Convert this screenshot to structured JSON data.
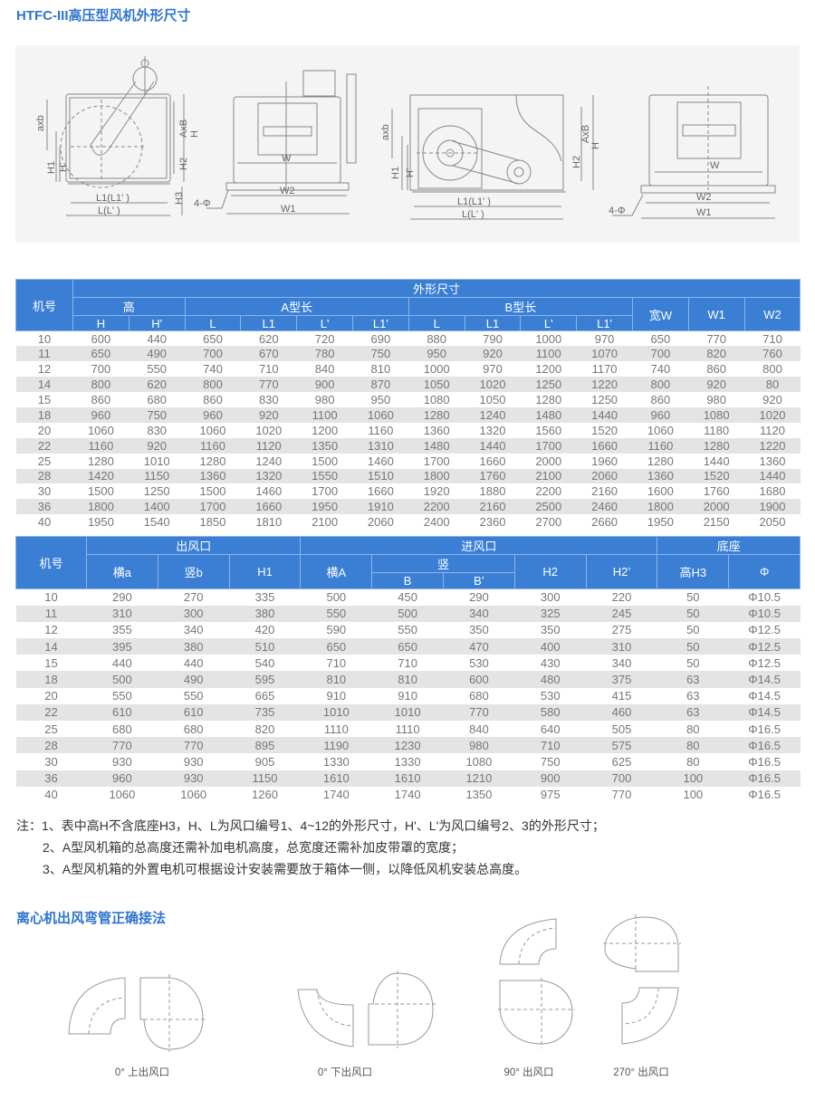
{
  "title": "HTFC-III高压型风机外形尺寸",
  "drawing_labels": {
    "axb": "axb",
    "AxB": "AxB",
    "H": "H",
    "H1": "H1",
    "H_prime": "H'",
    "H2": "H2",
    "H3": "H3",
    "L1": "L1(L1' )",
    "L": "L(L' )",
    "W": "W",
    "W1": "W1",
    "W2": "W2",
    "hole": "4-Φ"
  },
  "table1": {
    "group": "外形尺寸",
    "jihao": "机号",
    "gao": "高",
    "a_len": "A型长",
    "b_len": "B型长",
    "width_w": "宽W",
    "w1": "W1",
    "w2": "W2",
    "sub": [
      "H",
      "H'",
      "L",
      "L1",
      "L'",
      "L1'",
      "L",
      "L1",
      "L'",
      "L1'"
    ],
    "rows": [
      [
        "10",
        "600",
        "440",
        "650",
        "620",
        "720",
        "690",
        "880",
        "790",
        "1000",
        "970",
        "650",
        "770",
        "710"
      ],
      [
        "11",
        "650",
        "490",
        "700",
        "670",
        "780",
        "750",
        "950",
        "920",
        "1100",
        "1070",
        "700",
        "820",
        "760"
      ],
      [
        "12",
        "700",
        "550",
        "740",
        "710",
        "840",
        "810",
        "1000",
        "970",
        "1200",
        "1170",
        "740",
        "860",
        "800"
      ],
      [
        "14",
        "800",
        "620",
        "800",
        "770",
        "900",
        "870",
        "1050",
        "1020",
        "1250",
        "1220",
        "800",
        "920",
        "80"
      ],
      [
        "15",
        "860",
        "680",
        "860",
        "830",
        "980",
        "950",
        "1080",
        "1050",
        "1280",
        "1250",
        "860",
        "980",
        "920"
      ],
      [
        "18",
        "960",
        "750",
        "960",
        "920",
        "1100",
        "1060",
        "1280",
        "1240",
        "1480",
        "1440",
        "960",
        "1080",
        "1020"
      ],
      [
        "20",
        "1060",
        "830",
        "1060",
        "1020",
        "1200",
        "1160",
        "1360",
        "1320",
        "1560",
        "1520",
        "1060",
        "1180",
        "1120"
      ],
      [
        "22",
        "1160",
        "920",
        "1160",
        "1120",
        "1350",
        "1310",
        "1480",
        "1440",
        "1700",
        "1660",
        "1160",
        "1280",
        "1220"
      ],
      [
        "25",
        "1280",
        "1010",
        "1280",
        "1240",
        "1500",
        "1460",
        "1700",
        "1660",
        "2000",
        "1960",
        "1280",
        "1440",
        "1360"
      ],
      [
        "28",
        "1420",
        "1150",
        "1360",
        "1320",
        "1550",
        "1510",
        "1800",
        "1760",
        "2100",
        "2060",
        "1360",
        "1520",
        "1440"
      ],
      [
        "30",
        "1500",
        "1250",
        "1500",
        "1460",
        "1700",
        "1660",
        "1920",
        "1880",
        "2200",
        "2160",
        "1600",
        "1760",
        "1680"
      ],
      [
        "36",
        "1800",
        "1400",
        "1700",
        "1660",
        "1950",
        "1910",
        "2200",
        "2160",
        "2500",
        "2460",
        "1800",
        "2000",
        "1900"
      ],
      [
        "40",
        "1950",
        "1540",
        "1850",
        "1810",
        "2100",
        "2060",
        "2400",
        "2360",
        "2700",
        "2660",
        "1950",
        "2150",
        "2050"
      ]
    ]
  },
  "table2": {
    "jihao": "机号",
    "outlet": "出风口",
    "inlet": "进风口",
    "base": "底座",
    "heng_a": "横a",
    "shu_b": "竖b",
    "h1": "H1",
    "heng_A": "横A",
    "shu": "竖",
    "B": "B",
    "B_prime": "B’",
    "h2": "H2",
    "h2_prime": "H2’",
    "h3": "高H3",
    "phi": "Φ",
    "rows": [
      [
        "10",
        "290",
        "270",
        "335",
        "500",
        "450",
        "290",
        "300",
        "220",
        "50",
        "Φ10.5"
      ],
      [
        "11",
        "310",
        "300",
        "380",
        "550",
        "500",
        "340",
        "325",
        "245",
        "50",
        "Φ10.5"
      ],
      [
        "12",
        "355",
        "340",
        "420",
        "590",
        "550",
        "350",
        "350",
        "275",
        "50",
        "Φ12.5"
      ],
      [
        "14",
        "395",
        "380",
        "510",
        "650",
        "650",
        "470",
        "400",
        "310",
        "50",
        "Φ12.5"
      ],
      [
        "15",
        "440",
        "440",
        "540",
        "710",
        "710",
        "530",
        "430",
        "340",
        "50",
        "Φ12.5"
      ],
      [
        "18",
        "500",
        "490",
        "595",
        "810",
        "810",
        "600",
        "480",
        "375",
        "63",
        "Φ14.5"
      ],
      [
        "20",
        "550",
        "550",
        "665",
        "910",
        "910",
        "680",
        "530",
        "415",
        "63",
        "Φ14.5"
      ],
      [
        "22",
        "610",
        "610",
        "735",
        "1010",
        "1010",
        "770",
        "580",
        "460",
        "63",
        "Φ14.5"
      ],
      [
        "25",
        "680",
        "680",
        "820",
        "1110",
        "1110",
        "840",
        "640",
        "505",
        "80",
        "Φ16.5"
      ],
      [
        "28",
        "770",
        "770",
        "895",
        "1190",
        "1230",
        "980",
        "710",
        "575",
        "80",
        "Φ16.5"
      ],
      [
        "30",
        "930",
        "930",
        "905",
        "1330",
        "1330",
        "1080",
        "750",
        "625",
        "80",
        "Φ16.5"
      ],
      [
        "36",
        "960",
        "930",
        "1150",
        "1610",
        "1610",
        "1210",
        "900",
        "700",
        "100",
        "Φ16.5"
      ],
      [
        "40",
        "1060",
        "1060",
        "1260",
        "1740",
        "1740",
        "1350",
        "975",
        "770",
        "100",
        "Φ16.5"
      ]
    ]
  },
  "notes": {
    "prefix": "注：",
    "items": [
      "1、表中高H不含底座H3，H、L为风口编号1、4~12的外形尺寸，H'、L'为风口编号2、3的外形尺寸；",
      "2、A型风机箱的总高度还需补加电机高度，总宽度还需补加皮带罩的宽度；",
      "3、A型风机箱的外置电机可根据设计安装需要放于箱体一侧，以降低风机安装总高度。"
    ]
  },
  "elbow_section": {
    "title": "离心机出风弯管正确接法",
    "labels": [
      "0°  上出风口",
      "0°  下出风口",
      "90°  出风口",
      "270°  出风口"
    ]
  },
  "colors": {
    "accent": "#2f74cf",
    "header_bg": "#3b7fd5",
    "stripe": "#e4e4e4"
  }
}
